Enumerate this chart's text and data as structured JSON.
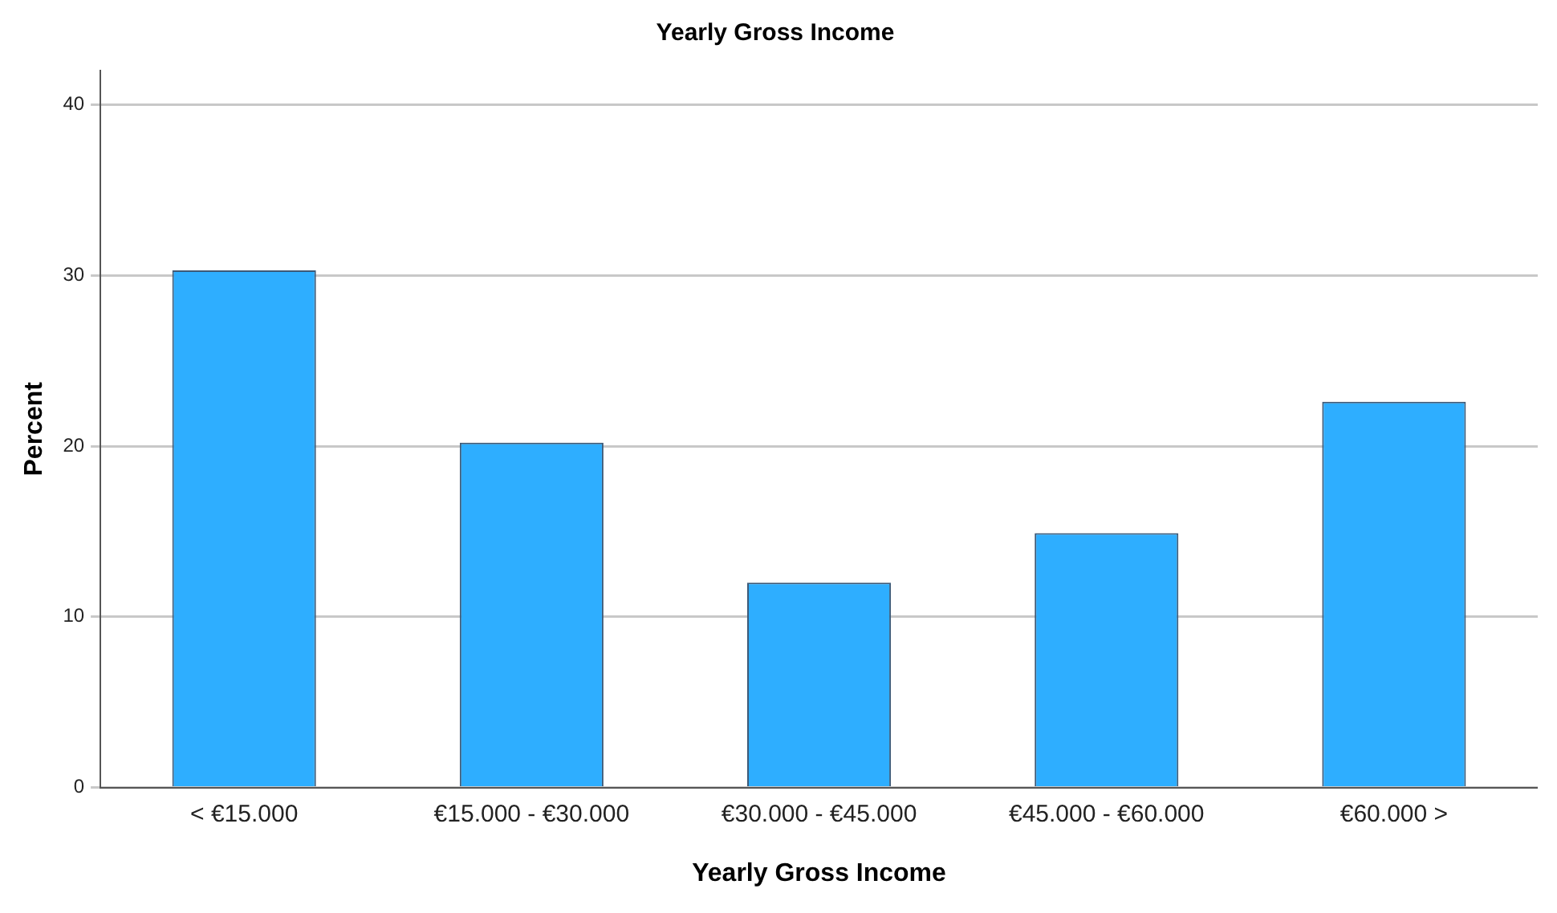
{
  "chart_data": {
    "type": "bar",
    "title": "Yearly Gross Income",
    "xlabel": "Yearly Gross Income",
    "ylabel": "Percent",
    "categories": [
      "< €15.000",
      "€15.000 - €30.000",
      "€30.000 - €45.000",
      "€45.000 - €60.000",
      "€60.000 >"
    ],
    "values": [
      30.3,
      20.2,
      12.0,
      14.9,
      22.6
    ],
    "color": "#2eaeff",
    "ylim": [
      0,
      42
    ],
    "yticks": [
      0,
      10,
      20,
      30,
      40
    ],
    "grid": "y",
    "legend": false
  }
}
